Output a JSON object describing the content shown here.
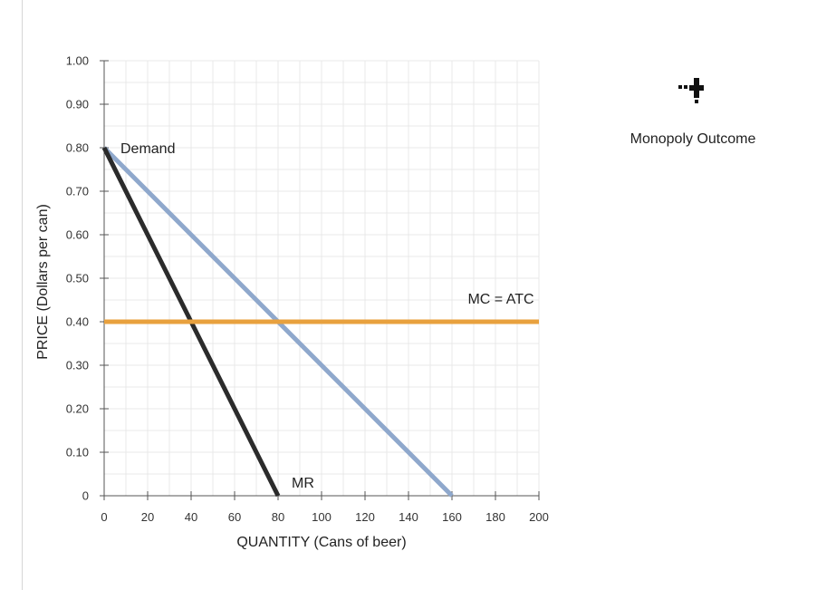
{
  "chart_data": {
    "type": "line",
    "xlabel": "QUANTITY (Cans of beer)",
    "ylabel": "PRICE (Dollars per can)",
    "xlim": [
      0,
      200
    ],
    "ylim": [
      0,
      1.0
    ],
    "x_ticks": [
      "0",
      "20",
      "40",
      "60",
      "80",
      "100",
      "120",
      "140",
      "160",
      "180",
      "200"
    ],
    "x_tick_values": [
      0,
      20,
      40,
      60,
      80,
      100,
      120,
      140,
      160,
      180,
      200
    ],
    "y_ticks": [
      "0",
      "0.10",
      "0.20",
      "0.30",
      "0.40",
      "0.50",
      "0.60",
      "0.70",
      "0.80",
      "0.90",
      "1.00"
    ],
    "y_tick_values": [
      0,
      0.1,
      0.2,
      0.3,
      0.4,
      0.5,
      0.6,
      0.7,
      0.8,
      0.9,
      1.0
    ],
    "grid": true,
    "series": [
      {
        "name": "Demand",
        "color": "#8fa8cc",
        "points": [
          [
            0,
            0.8
          ],
          [
            160,
            0
          ]
        ]
      },
      {
        "name": "MR",
        "color": "#2b2b2b",
        "points": [
          [
            0,
            0.8
          ],
          [
            80,
            0
          ]
        ]
      },
      {
        "name": "MC = ATC",
        "color": "#e8a13e",
        "points": [
          [
            0,
            0.4
          ],
          [
            200,
            0.4
          ]
        ]
      }
    ]
  },
  "palette": {
    "tool_label": "Monopoly Outcome",
    "tool_icon": "monopoly-outcome-plus-icon"
  }
}
